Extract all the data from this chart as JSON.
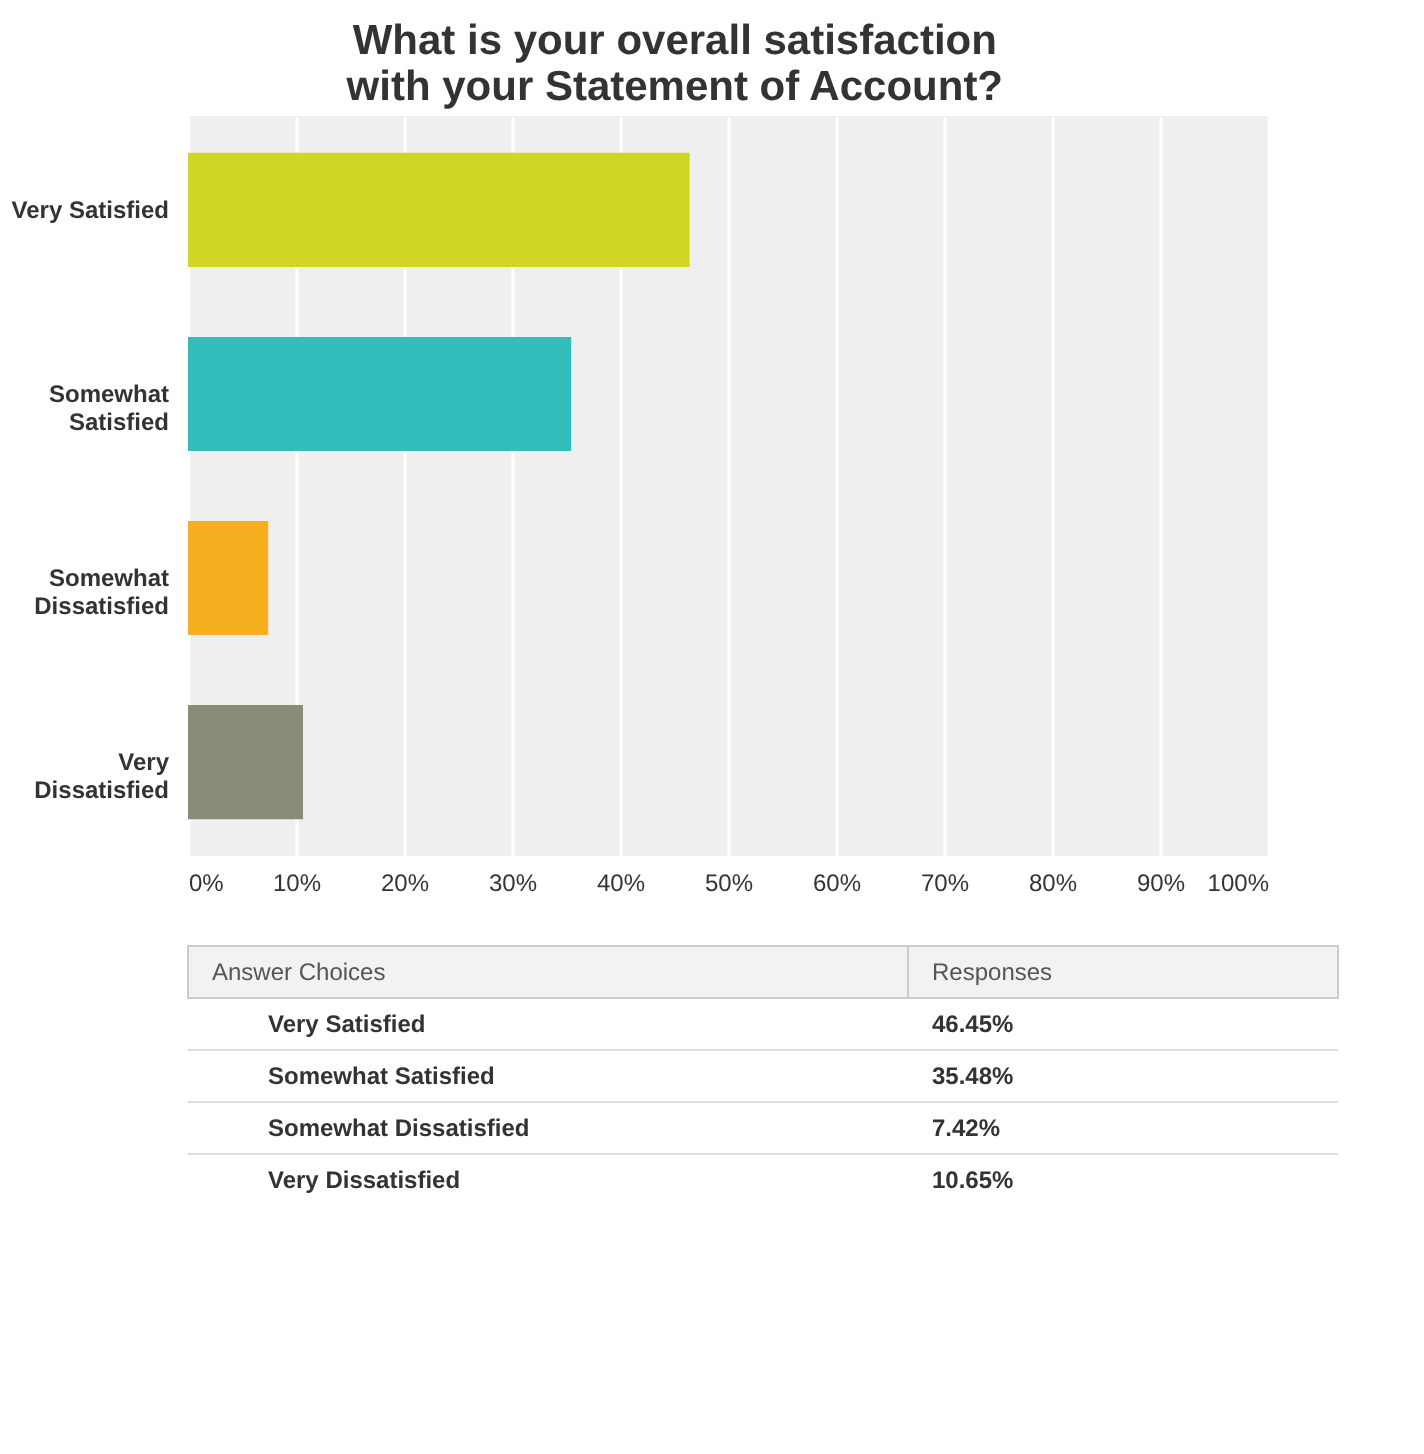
{
  "chart_data": {
    "type": "bar",
    "orientation": "horizontal",
    "title": "What is your overall satisfaction with your Statement of Account?",
    "categories": [
      "Very Satisfied",
      "Somewhat Satisfied",
      "Somewhat Dissatisfied",
      "Very Dissatisfied"
    ],
    "values": [
      46.45,
      35.48,
      7.42,
      10.65
    ],
    "colors": [
      "#d1d526",
      "#33bdbd",
      "#f7ae1f",
      "#8b8b79"
    ],
    "annotations": [
      "Answer Choices",
      "Responses",
      "46.45%",
      "35.48%",
      "7.42%",
      "10.65%"
    ],
    "xlim": [
      0,
      100
    ],
    "xticks": [
      {
        "value": 0,
        "label": "0%"
      },
      {
        "value": 10,
        "label": "10%"
      },
      {
        "value": 20,
        "label": "20%"
      },
      {
        "value": 30,
        "label": "30%"
      },
      {
        "value": 40,
        "label": "40%"
      },
      {
        "value": 50,
        "label": "50%"
      },
      {
        "value": 60,
        "label": "60%"
      },
      {
        "value": 70,
        "label": "70%"
      },
      {
        "value": 80,
        "label": "80%"
      },
      {
        "value": 90,
        "label": "90%"
      },
      {
        "value": 100,
        "label": "100%"
      }
    ],
    "grid": "x"
  }
}
